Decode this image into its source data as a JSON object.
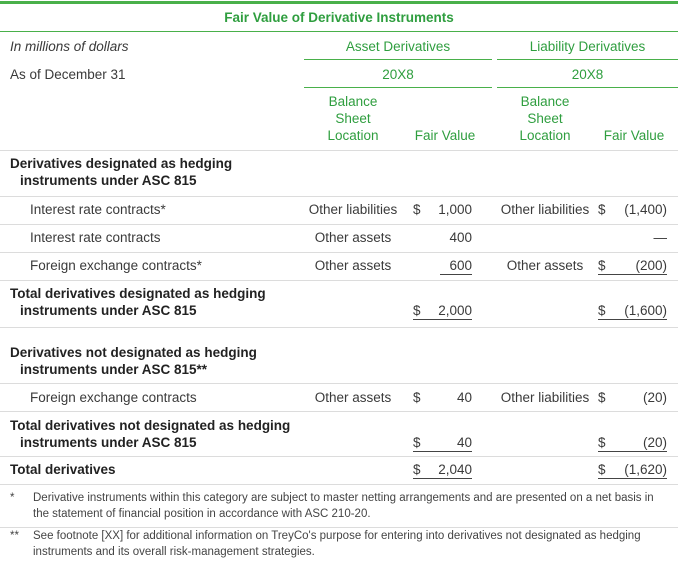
{
  "title": "Fair Value of Derivative Instruments",
  "header": {
    "units": "In millions of dollars",
    "as_of": "As of December 31",
    "asset_group": "Asset Derivatives",
    "liability_group": "Liability Derivatives",
    "asset_year": "20X8",
    "liability_year": "20X8",
    "columns": [
      "Balance Sheet Location",
      "Fair Value",
      "Balance Sheet Location",
      "Fair Value"
    ]
  },
  "rows": [
    {
      "label": "Derivatives designated as hedging instruments under ASC 815"
    },
    {
      "label": "Interest rate contracts*",
      "asset_location": "Other liabilities",
      "asset_currency": "$",
      "asset_value": "1,000",
      "liability_location": "Other liabilities",
      "liability_currency": "$",
      "liability_value": "(1,400)"
    },
    {
      "label": "Interest rate contracts",
      "asset_location": "Other assets",
      "asset_value": "400",
      "liability_value": "—"
    },
    {
      "label": "Foreign exchange contracts*",
      "asset_location": "Other assets",
      "asset_value": "600",
      "liability_location": "Other assets",
      "liability_currency": "$",
      "liability_value": "(200)"
    },
    {
      "label": "Total derivatives designated as hedging instruments under ASC 815",
      "asset_currency": "$",
      "asset_value": "2,000",
      "liability_currency": "$",
      "liability_value": "(1,600)"
    },
    {
      "label": "Derivatives not designated as hedging instruments under ASC 815**"
    },
    {
      "label": "Foreign exchange contracts",
      "asset_location": "Other assets",
      "asset_currency": "$",
      "asset_value": "40",
      "liability_location": "Other liabilities",
      "liability_currency": "$",
      "liability_value": "(20)"
    },
    {
      "label": "Total derivatives not designated as hedging instruments under ASC 815",
      "asset_currency": "$",
      "asset_value": "40",
      "liability_currency": "$",
      "liability_value": "(20)"
    },
    {
      "label": "Total derivatives",
      "asset_currency": "$",
      "asset_value": "2,040",
      "liability_currency": "$",
      "liability_value": "(1,620)"
    }
  ],
  "footnotes": [
    {
      "mark": "*",
      "text": "Derivative instruments within this category are subject to master netting arrangements and are presented on a net basis in the statement of financial position in accordance with ASC 210-20."
    },
    {
      "mark": "**",
      "text": "See footnote [XX] for additional information on TreyCo's purpose for entering into derivatives not designated as hedging instruments and its overall risk-management strategies."
    }
  ]
}
